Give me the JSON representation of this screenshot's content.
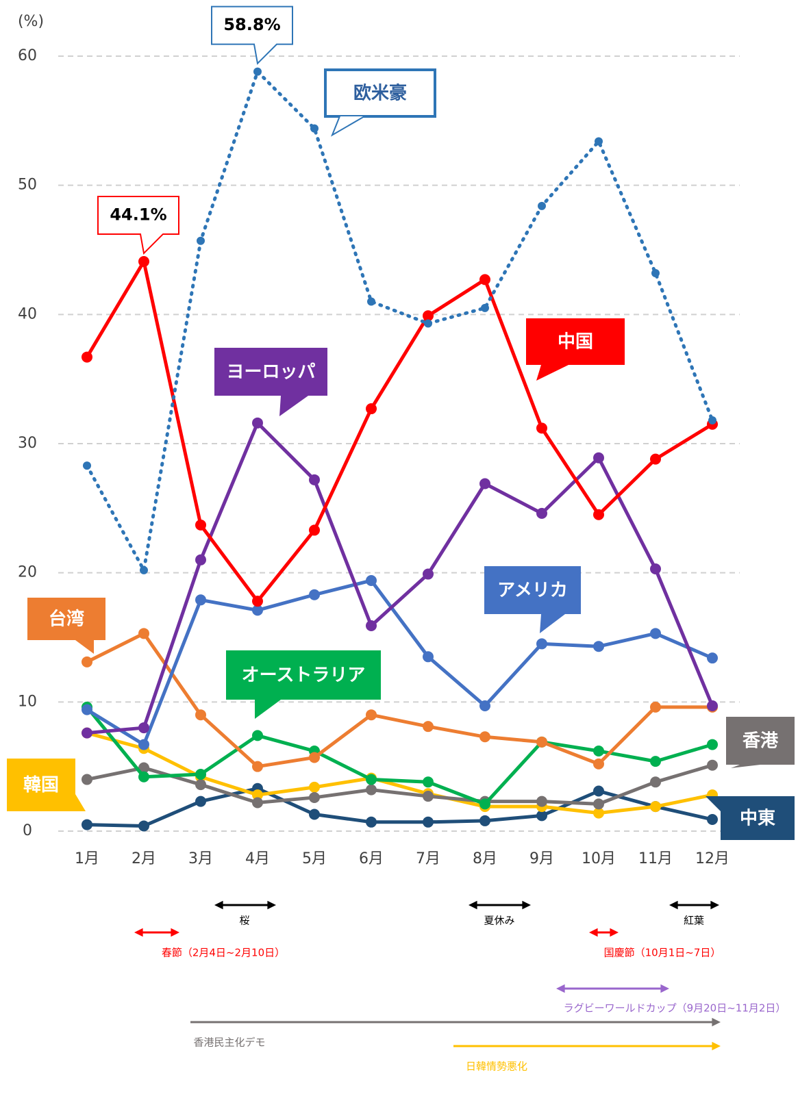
{
  "chart_data": {
    "type": "line",
    "y_unit": "(%)",
    "categories": [
      "1月",
      "2月",
      "3月",
      "4月",
      "5月",
      "6月",
      "7月",
      "8月",
      "9月",
      "10月",
      "11月",
      "12月"
    ],
    "ylim": [
      0,
      60
    ],
    "yticks": [
      0,
      10,
      20,
      30,
      40,
      50,
      60
    ],
    "grid": true,
    "series": [
      {
        "name": "欧米豪",
        "color": "#2e75b6",
        "dotted": true,
        "values": [
          28.3,
          20.2,
          45.7,
          58.8,
          54.4,
          41.0,
          39.3,
          40.5,
          48.4,
          53.4,
          43.2,
          31.8
        ],
        "value_labels": [
          null,
          null,
          null,
          "58.8%",
          null,
          null,
          null,
          null,
          null,
          null,
          null,
          null
        ]
      },
      {
        "name": "中国",
        "color": "#ff0000",
        "values": [
          36.7,
          44.1,
          23.7,
          17.8,
          23.3,
          32.7,
          39.9,
          42.7,
          31.2,
          24.5,
          28.8,
          31.5
        ],
        "value_labels": [
          null,
          "44.1%",
          null,
          null,
          null,
          null,
          null,
          null,
          null,
          null,
          null,
          null
        ]
      },
      {
        "name": "ヨーロッパ",
        "color": "#7030a0",
        "values": [
          7.6,
          8.0,
          21.0,
          31.6,
          27.2,
          15.9,
          19.9,
          26.9,
          24.6,
          28.9,
          20.3,
          9.7
        ]
      },
      {
        "name": "アメリカ",
        "color": "#4472c4",
        "values": [
          9.4,
          6.7,
          17.9,
          17.1,
          18.3,
          19.4,
          13.5,
          9.7,
          14.5,
          14.3,
          15.3,
          13.4
        ]
      },
      {
        "name": "台湾",
        "color": "#ed7d31",
        "values": [
          13.1,
          15.3,
          9.0,
          5.0,
          5.7,
          9.0,
          8.1,
          7.3,
          6.9,
          5.2,
          9.6,
          9.6
        ]
      },
      {
        "name": "オーストラリア",
        "color": "#00b050",
        "values": [
          9.6,
          4.2,
          4.4,
          7.4,
          6.2,
          4.0,
          3.8,
          2.1,
          6.9,
          6.2,
          5.4,
          6.7
        ]
      },
      {
        "name": "香港",
        "color": "#767171",
        "values": [
          4.0,
          4.9,
          3.6,
          2.2,
          2.6,
          3.2,
          2.7,
          2.3,
          2.3,
          2.1,
          3.8,
          5.1
        ]
      },
      {
        "name": "韓国",
        "color": "#ffc000",
        "values": [
          7.6,
          6.4,
          4.2,
          2.8,
          3.4,
          4.1,
          2.9,
          1.9,
          1.9,
          1.4,
          1.9,
          2.8
        ]
      },
      {
        "name": "中東",
        "color": "#1f4e79",
        "values": [
          0.5,
          0.4,
          2.3,
          3.3,
          1.3,
          0.7,
          0.7,
          0.8,
          1.2,
          3.1,
          1.9,
          0.9
        ]
      }
    ],
    "events": [
      {
        "label": "桜",
        "color": "#000000"
      },
      {
        "label": "夏休み",
        "color": "#000000"
      },
      {
        "label": "紅葉",
        "color": "#000000"
      },
      {
        "label": "春節（2月4日~2月10日）",
        "color": "#ff0000"
      },
      {
        "label": "国慶節（10月1日~7日）",
        "color": "#ff0000"
      },
      {
        "label": "ラグビーワールドカップ（9月20日~11月2日）",
        "color": "#9966cc"
      },
      {
        "label": "香港民主化デモ",
        "color": "#767171"
      },
      {
        "label": "日韓情勢悪化",
        "color": "#ffc000"
      }
    ]
  }
}
